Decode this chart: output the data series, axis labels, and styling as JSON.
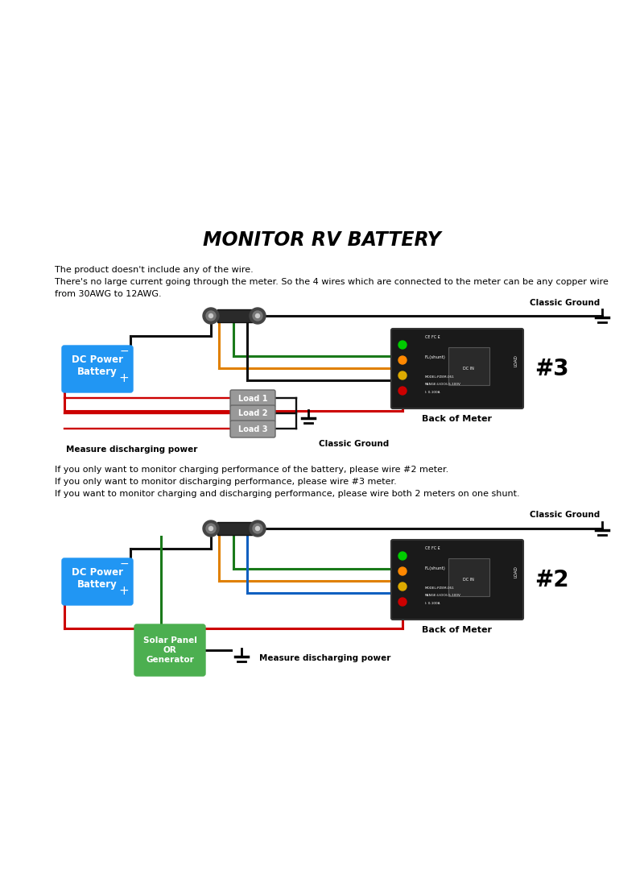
{
  "title": "MONITOR RV BATTERY",
  "bg_color": "#ffffff",
  "intro_text": "The product doesn't include any of the wire.\nThere's no large current going through the meter. So the 4 wires which are connected to the meter can be any copper wire\nfrom 30AWG to 12AWG.",
  "middle_text": "If you only want to monitor charging performance of the battery, please wire #2 meter.\nIf you only want to monitor discharging performance, please wire #3 meter.\nIf you want to monitor charging and discharging performance, please wire both 2 meters on one shunt.",
  "dc_battery_color": "#2196F3",
  "solar_color": "#4CAF50",
  "wire_black": "#111111",
  "wire_red": "#CC0000",
  "wire_green": "#1a7a1a",
  "wire_orange": "#E08000",
  "wire_blue": "#1060C0",
  "wire_yellow": "#ccaa00"
}
